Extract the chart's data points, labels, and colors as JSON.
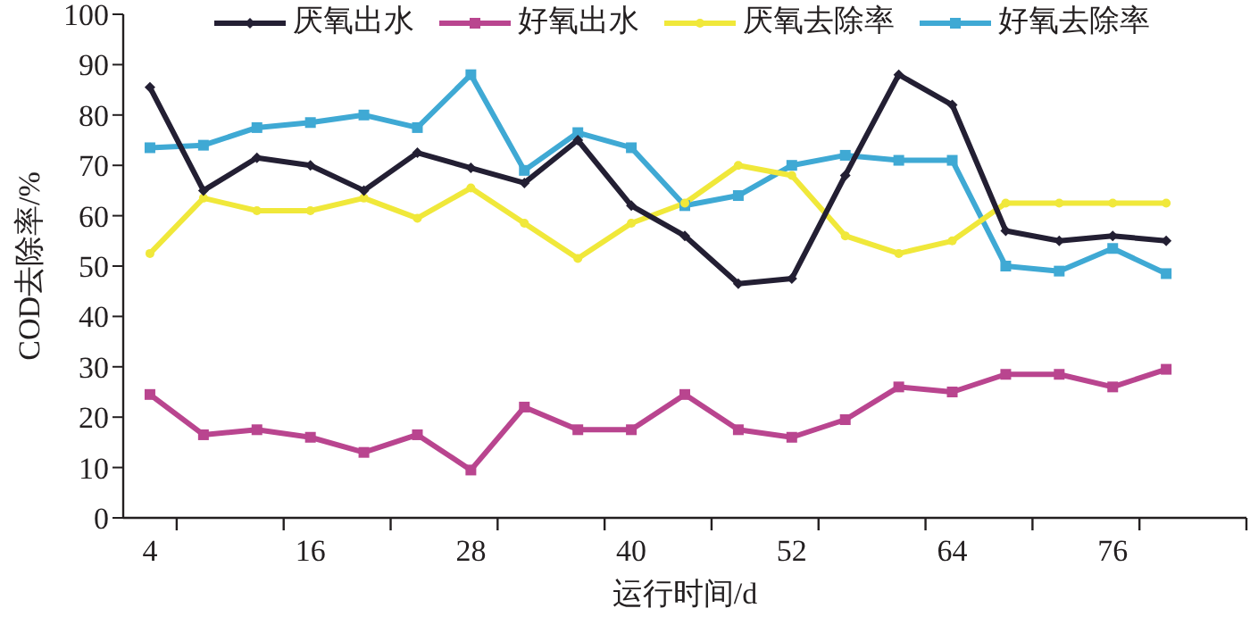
{
  "chart_data": {
    "type": "line",
    "xlabel": "运行时间/d",
    "ylabel": "COD去除率/%",
    "x": [
      4,
      8,
      12,
      16,
      20,
      24,
      28,
      32,
      36,
      40,
      44,
      48,
      52,
      56,
      60,
      64,
      68,
      72,
      76,
      80
    ],
    "xlim": [
      2,
      86
    ],
    "xticks": [
      {
        "value": 4,
        "label": "4"
      },
      {
        "value": 6,
        "label": null
      },
      {
        "value": 14,
        "label": null
      },
      {
        "value": 16,
        "label": "16"
      },
      {
        "value": 22,
        "label": null
      },
      {
        "value": 28,
        "label": "28"
      },
      {
        "value": 30,
        "label": null
      },
      {
        "value": 38,
        "label": null
      },
      {
        "value": 40,
        "label": "40"
      },
      {
        "value": 46,
        "label": null
      },
      {
        "value": 52,
        "label": "52"
      },
      {
        "value": 54,
        "label": null
      },
      {
        "value": 62,
        "label": null
      },
      {
        "value": 64,
        "label": "64"
      },
      {
        "value": 70,
        "label": null
      },
      {
        "value": 76,
        "label": "76"
      },
      {
        "value": 78,
        "label": null
      },
      {
        "value": 86,
        "label": null
      }
    ],
    "ylim": [
      0,
      100
    ],
    "yticks": [
      0,
      10,
      20,
      30,
      40,
      50,
      60,
      70,
      80,
      90,
      100
    ],
    "grid": false,
    "legend": "top",
    "line_style": "solid",
    "series": [
      {
        "name": "厌氧出水",
        "color": "#231f33",
        "marker": "diamond",
        "values": [
          85.5,
          65,
          71.5,
          70,
          65,
          72.5,
          69.5,
          66.5,
          75,
          62,
          56,
          46.5,
          47.5,
          68,
          88,
          82,
          57,
          55,
          56,
          55
        ]
      },
      {
        "name": "好氧出水",
        "color": "#b9458f",
        "marker": "square",
        "values": [
          24.5,
          16.5,
          17.5,
          16,
          13,
          16.5,
          9.5,
          22,
          17.5,
          17.5,
          24.5,
          17.5,
          16,
          19.5,
          26,
          25,
          28.5,
          28.5,
          26,
          29.5
        ]
      },
      {
        "name": "厌氧去除率",
        "color": "#f0e83a",
        "marker": "circle",
        "values": [
          52.5,
          63.5,
          61,
          61,
          63.5,
          59.5,
          65.5,
          58.5,
          51.5,
          58.5,
          62.5,
          70,
          68,
          56,
          52.5,
          55,
          62.5,
          62.5,
          62.5,
          62.5
        ]
      },
      {
        "name": "好氧去除率",
        "color": "#3fa9d4",
        "marker": "square",
        "values": [
          73.5,
          74,
          77.5,
          78.5,
          80,
          77.5,
          88,
          69,
          76.5,
          73.5,
          62,
          64,
          70,
          72,
          71,
          71,
          50,
          49,
          53.5,
          48.5
        ]
      }
    ]
  }
}
